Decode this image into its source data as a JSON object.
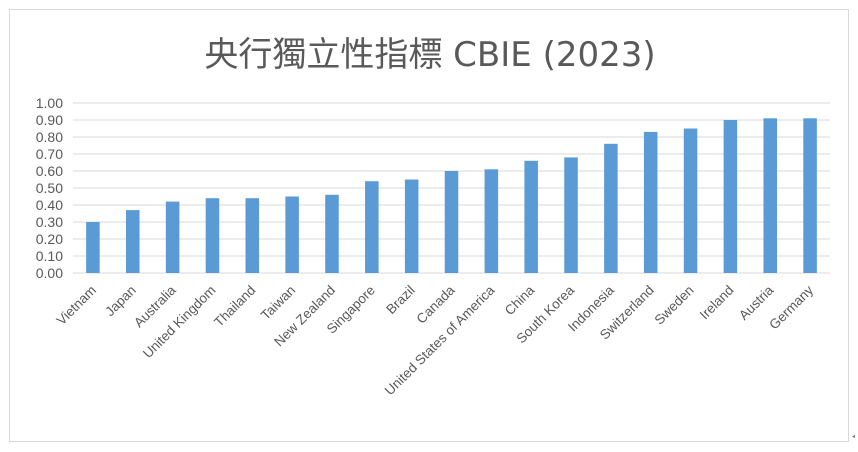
{
  "chart_data": {
    "type": "bar",
    "title": "央行獨立性指標 CBIE (2023)",
    "xlabel": "",
    "ylabel": "",
    "ylim": [
      0,
      1
    ],
    "ytick_step": 0.1,
    "yticks": [
      "0.00",
      "0.10",
      "0.20",
      "0.30",
      "0.40",
      "0.50",
      "0.60",
      "0.70",
      "0.80",
      "0.90",
      "1.00"
    ],
    "grid": true,
    "legend": "none",
    "bar_color": "#5B9BD5",
    "grid_color": "#d9d9d9",
    "categories": [
      "Vietnam",
      "Japan",
      "Australia",
      "United Kingdom",
      "Thailand",
      "Taiwan",
      "New Zealand",
      "Singapore",
      "Brazil",
      "Canada",
      "United States of America",
      "China",
      "South Korea",
      "Indonesia",
      "Switzerland",
      "Sweden",
      "Ireland",
      "Austria",
      "Germany"
    ],
    "values": [
      0.3,
      0.37,
      0.42,
      0.44,
      0.44,
      0.45,
      0.46,
      0.54,
      0.55,
      0.6,
      0.61,
      0.66,
      0.68,
      0.76,
      0.83,
      0.85,
      0.9,
      0.91,
      0.91
    ]
  }
}
